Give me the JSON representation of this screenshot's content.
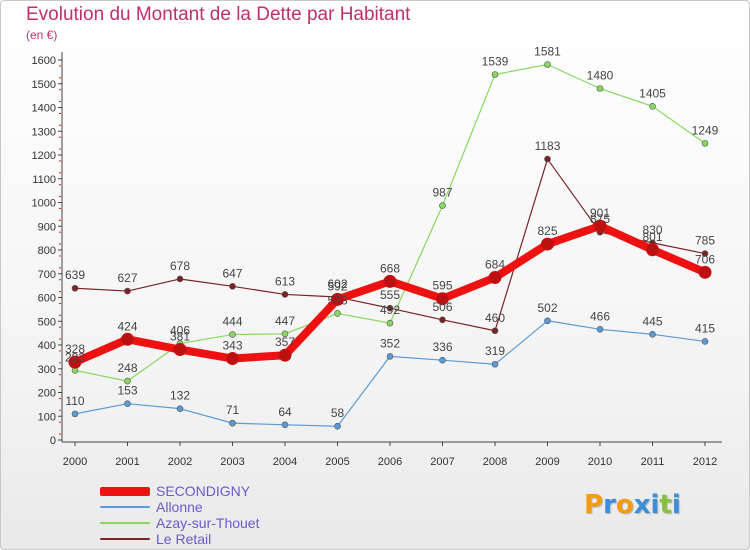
{
  "chart_data": {
    "type": "line",
    "title": "Evolution du Montant de la Dette par Habitant",
    "subtitle": "(en €)",
    "categories": [
      "2000",
      "2001",
      "2002",
      "2003",
      "2004",
      "2005",
      "2006",
      "2007",
      "2008",
      "2009",
      "2010",
      "2011",
      "2012"
    ],
    "ylim": [
      0,
      1600
    ],
    "yticks": [
      0,
      100,
      200,
      300,
      400,
      500,
      600,
      700,
      800,
      900,
      1000,
      1100,
      1200,
      1300,
      1400,
      1500,
      1600
    ],
    "grid": false,
    "legend_position": "bottom-left",
    "series": [
      {
        "name": "SECONDIGNY",
        "color": "#ee1111",
        "width": "thick",
        "values": [
          328,
          424,
          381,
          343,
          357,
          592,
          668,
          595,
          684,
          825,
          901,
          801,
          706
        ]
      },
      {
        "name": "Allonne",
        "color": "#5b9bd5",
        "width": "thin",
        "values": [
          110,
          153,
          132,
          71,
          64,
          58,
          352,
          336,
          319,
          502,
          466,
          445,
          415
        ]
      },
      {
        "name": "Azay-sur-Thouet",
        "color": "#88d860",
        "width": "thin",
        "values": [
          293,
          248,
          406,
          444,
          447,
          533,
          492,
          987,
          1539,
          1581,
          1480,
          1405,
          1249
        ]
      },
      {
        "name": "Le Retail",
        "color": "#7a2424",
        "width": "thin",
        "values": [
          639,
          627,
          678,
          647,
          613,
          602,
          555,
          506,
          460,
          1183,
          875,
          830,
          785
        ]
      }
    ]
  },
  "legend": {
    "items": [
      {
        "label": "SECONDIGNY",
        "color": "#ee1111"
      },
      {
        "label": "Allonne",
        "color": "#5b9bd5"
      },
      {
        "label": "Azay-sur-Thouet",
        "color": "#88d860"
      },
      {
        "label": "Le Retail",
        "color": "#7a2424"
      }
    ],
    "label_color": "#6a5acd"
  },
  "logo": {
    "text": "Proxiti",
    "colors": [
      "#f39c12",
      "#3a8fd8",
      "#f39c12",
      "#3a8fd8",
      "#3a8fd8",
      "#88c040",
      "#3a8fd8"
    ]
  }
}
